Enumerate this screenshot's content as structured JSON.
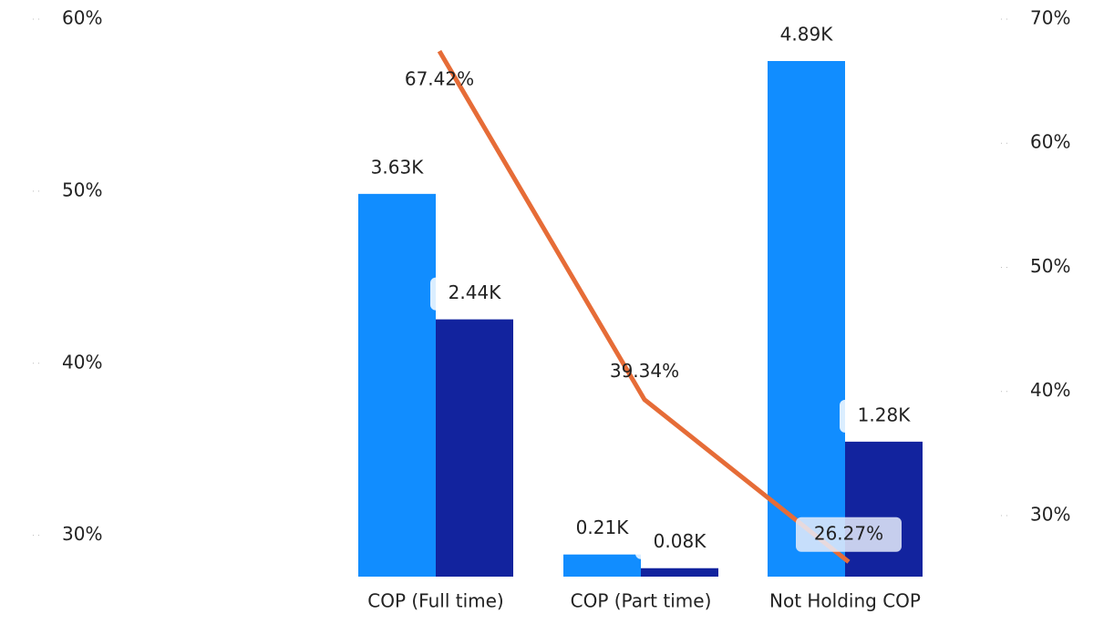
{
  "chart_data": {
    "type": "bar_line",
    "categories": [
      "COP (Full time)",
      "COP (Part time)",
      "Not Holding COP"
    ],
    "series": [
      {
        "type": "bar",
        "color": "#118dff",
        "values": [
          3630,
          210,
          4890
        ],
        "value_labels": [
          "3.63K",
          "0.21K",
          "4.89K"
        ]
      },
      {
        "type": "bar",
        "color": "#12239e",
        "values": [
          2440,
          80,
          1280
        ],
        "value_labels": [
          "2.44K",
          "0.08K",
          "1.28K"
        ]
      },
      {
        "type": "line",
        "axis": "y2",
        "color": "#e66c37",
        "values": [
          67.42,
          39.34,
          26.27
        ],
        "value_labels": [
          "67.42%",
          "39.34%",
          "26.27%"
        ]
      }
    ],
    "ylim": [
      27.6,
      60
    ],
    "yticks": [
      {
        "value": 30,
        "label": "30%"
      },
      {
        "value": 40,
        "label": "40%"
      },
      {
        "value": 50,
        "label": "50%"
      },
      {
        "value": 60,
        "label": "60%"
      }
    ],
    "y2lim": [
      25.08,
      70
    ],
    "y2ticks": [
      {
        "value": 30,
        "label": "30%"
      },
      {
        "value": 40,
        "label": "40%"
      },
      {
        "value": 50,
        "label": "50%"
      },
      {
        "value": 60,
        "label": "60%"
      },
      {
        "value": 70,
        "label": "70%"
      }
    ]
  }
}
